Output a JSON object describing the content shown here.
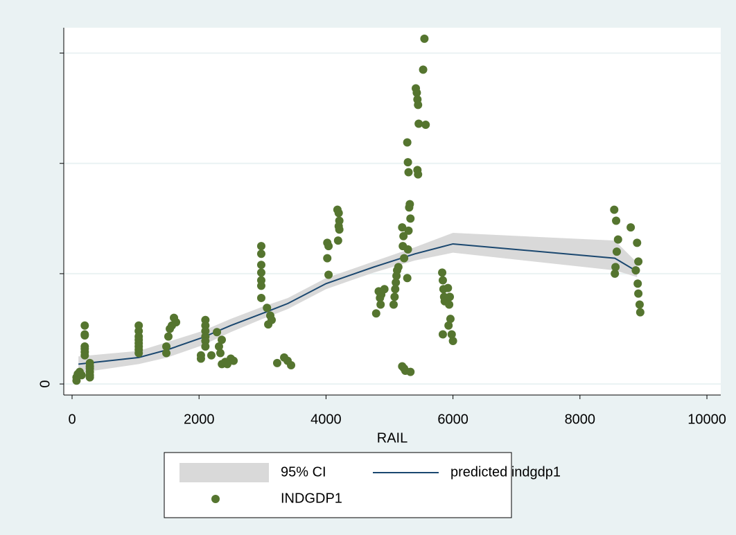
{
  "chart_data": {
    "type": "combo",
    "xlabel": "RAIL",
    "xlim": [
      -131,
      10218
    ],
    "xticks": [
      0,
      2000,
      4000,
      6000,
      8000,
      10000
    ],
    "ylim": [
      -0.1,
      3.23
    ],
    "yticks": [
      0,
      {
        "value": 1,
        "label": null
      },
      {
        "value": 2,
        "label": null
      },
      {
        "value": 3,
        "label": null
      }
    ],
    "grid": true,
    "series": [
      {
        "name": "95% CI",
        "type": "band",
        "color": "#d9d9d9",
        "x": [
          100,
          1050,
          1500,
          2050,
          2500,
          3000,
          3400,
          4000,
          4750,
          5400,
          6000,
          8550,
          8900
        ],
        "lower": [
          0.1,
          0.18,
          0.24,
          0.35,
          0.47,
          0.59,
          0.68,
          0.86,
          1.01,
          1.12,
          1.19,
          1.03,
          0.97
        ],
        "upper": [
          0.25,
          0.3,
          0.38,
          0.48,
          0.59,
          0.7,
          0.78,
          0.96,
          1.11,
          1.24,
          1.37,
          1.3,
          1.1
        ]
      },
      {
        "name": "predicted indgdp1",
        "type": "line",
        "color": "#1a476f",
        "x": [
          100,
          1050,
          1500,
          2050,
          2500,
          3000,
          3400,
          4000,
          4750,
          5400,
          6000,
          8550,
          8900
        ],
        "values": [
          0.18,
          0.24,
          0.31,
          0.42,
          0.53,
          0.64,
          0.73,
          0.91,
          1.06,
          1.18,
          1.27,
          1.14,
          1.02
        ]
      },
      {
        "name": "INDGDP1",
        "type": "scatter",
        "color": "#55752f",
        "x": [
          70,
          90,
          120,
          70,
          150,
          200,
          200,
          200,
          200,
          200,
          200,
          200,
          280,
          280,
          280,
          280,
          280,
          280,
          1050,
          1050,
          1050,
          1050,
          1050,
          1050,
          1050,
          1050,
          1485,
          1517,
          1540,
          1572,
          1605,
          1638,
          1485,
          2030,
          2030,
          2100,
          2100,
          2100,
          2100,
          2100,
          2100,
          2194,
          2282,
          2314,
          2336,
          2358,
          2360,
          2413,
          2500,
          2544,
          2445,
          2980,
          2980,
          2980,
          2980,
          2980,
          2980,
          2980,
          3070,
          3090,
          3122,
          3144,
          3231,
          3341,
          3395,
          3450,
          4020,
          4040,
          4020,
          4040,
          4180,
          4200,
          4210,
          4200,
          4210,
          4190,
          4790,
          4860,
          4830,
          4870,
          4850,
          4920,
          4850,
          5065,
          5080,
          5090,
          5100,
          5110,
          5120,
          5140,
          5200,
          5220,
          5210,
          5230,
          5200,
          5230,
          5250,
          5280,
          5290,
          5300,
          5320,
          5310,
          5330,
          5300,
          5290,
          5280,
          5330,
          5415,
          5430,
          5440,
          5450,
          5460,
          5440,
          5450,
          5550,
          5530,
          5570,
          5830,
          5840,
          5850,
          5860,
          5870,
          5840,
          5920,
          5950,
          5940,
          5960,
          5930,
          5980,
          6000,
          8540,
          8570,
          8600,
          8580,
          8560,
          8550,
          8800,
          8900,
          8920,
          8880,
          8910,
          8920,
          8940,
          8950
        ],
        "values": [
          0.06,
          0.09,
          0.11,
          0.03,
          0.08,
          0.53,
          0.45,
          0.44,
          0.34,
          0.32,
          0.29,
          0.26,
          0.19,
          0.16,
          0.14,
          0.11,
          0.08,
          0.06,
          0.53,
          0.48,
          0.43,
          0.4,
          0.37,
          0.34,
          0.31,
          0.28,
          0.34,
          0.43,
          0.5,
          0.53,
          0.6,
          0.56,
          0.28,
          0.26,
          0.23,
          0.58,
          0.53,
          0.48,
          0.43,
          0.39,
          0.34,
          0.26,
          0.47,
          0.34,
          0.28,
          0.4,
          0.18,
          0.2,
          0.23,
          0.21,
          0.18,
          1.25,
          1.18,
          1.08,
          1.01,
          0.94,
          0.89,
          0.78,
          0.69,
          0.54,
          0.62,
          0.58,
          0.19,
          0.24,
          0.21,
          0.17,
          1.28,
          1.25,
          1.14,
          0.99,
          1.58,
          1.55,
          1.48,
          1.43,
          1.4,
          1.3,
          0.64,
          0.72,
          0.84,
          0.81,
          0.78,
          0.86,
          0.83,
          0.72,
          0.79,
          0.86,
          0.92,
          0.98,
          1.03,
          1.06,
          1.42,
          1.34,
          1.25,
          1.14,
          0.16,
          0.14,
          0.12,
          2.19,
          2.01,
          1.92,
          1.63,
          1.6,
          1.5,
          1.39,
          1.22,
          0.96,
          0.11,
          2.68,
          2.64,
          2.58,
          2.53,
          2.36,
          1.94,
          1.9,
          3.13,
          2.85,
          2.35,
          1.01,
          0.94,
          0.86,
          0.79,
          0.75,
          0.45,
          0.87,
          0.79,
          0.72,
          0.59,
          0.53,
          0.45,
          0.39,
          1.58,
          1.48,
          1.31,
          1.2,
          1.06,
          1.0,
          1.42,
          1.28,
          1.11,
          1.03,
          0.91,
          0.82,
          0.72,
          0.65
        ]
      }
    ]
  }
}
